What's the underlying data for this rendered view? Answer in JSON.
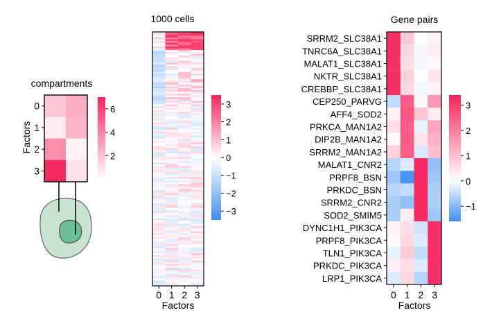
{
  "colors": {
    "neg_full": "#3d8ff0",
    "zero": "#ffffff",
    "pos_full": "#f6245b",
    "cell_outer_fill": "#c9e3d3",
    "cell_outer_stroke": "#6e6e6e",
    "cell_nucleus_fill": "#6bbf97",
    "frame": "#000000"
  },
  "chart_data": [
    {
      "type": "heatmap",
      "title": "compartments",
      "ylabel": "Factors",
      "xlabel": "",
      "row_labels": [
        "0",
        "1",
        "2",
        "3"
      ],
      "n_cols": 2,
      "values": [
        [
          1.8,
          2.6
        ],
        [
          0.6,
          2.4
        ],
        [
          3.6,
          0.4
        ],
        [
          6.8,
          1.0
        ]
      ],
      "colorbar": {
        "min": 0,
        "max": 7,
        "ticks": [
          2,
          4,
          6
        ],
        "tick_labels": [
          "2",
          "4",
          "6"
        ]
      }
    },
    {
      "type": "heatmap",
      "title": "1000 cells",
      "xlabel": "Factors",
      "col_labels": [
        "0",
        "1",
        "2",
        "3"
      ],
      "n_rows": 140,
      "pattern": "top rows strongly positive for factors 1-3; remaining rows mixed, mostly near zero with light blue in factor 0",
      "colorbar": {
        "min": -3.5,
        "max": 3.5,
        "ticks": [
          3,
          2,
          1,
          0,
          -1,
          -2,
          -3
        ],
        "tick_labels": [
          "3",
          "2",
          "1",
          "0",
          "−1",
          "−2",
          "−3"
        ]
      }
    },
    {
      "type": "heatmap",
      "title": "Gene pairs",
      "xlabel": "Factors",
      "col_labels": [
        "0",
        "1",
        "2",
        "3"
      ],
      "row_labels": [
        "SRRM2_SLC38A1",
        "TNRC6A_SLC38A1",
        "MALAT1_SLC38A1",
        "NKTR_SLC38A1",
        "CREBBP_SLC38A1",
        "CEP250_PARVG",
        "AFF4_SOD2",
        "PRKCA_MAN1A2",
        "DIP2B_MAN1A2",
        "SRRM2_MAN1A2",
        "MALAT1_CNR2",
        "PRPF8_BSN",
        "PRKDC_BSN",
        "SRRM2_CNR2",
        "SOD2_SMIM5",
        "DYNC1H1_PIK3CA",
        "PRPF8_PIK3CA",
        "TLN1_PIK3CA",
        "PRKDC_PIK3CA",
        "LRP1_PIK3CA"
      ],
      "values": [
        [
          3.2,
          0.8,
          0.0,
          0.2
        ],
        [
          3.2,
          0.6,
          -0.1,
          0.3
        ],
        [
          3.2,
          0.5,
          -0.1,
          0.1
        ],
        [
          3.2,
          0.7,
          0.0,
          0.4
        ],
        [
          3.2,
          0.6,
          -0.1,
          0.2
        ],
        [
          -0.5,
          2.5,
          0.1,
          1.6
        ],
        [
          0.2,
          2.6,
          0.9,
          0.3
        ],
        [
          0.5,
          2.5,
          -0.2,
          1.4
        ],
        [
          0.1,
          2.5,
          0.4,
          1.2
        ],
        [
          0.7,
          2.5,
          -0.3,
          1.0
        ],
        [
          -0.6,
          -0.3,
          3.3,
          -0.9
        ],
        [
          -0.8,
          -1.5,
          3.3,
          -0.8
        ],
        [
          -0.6,
          -0.5,
          3.3,
          -0.7
        ],
        [
          -0.7,
          -0.9,
          3.3,
          -0.7
        ],
        [
          -0.7,
          0.3,
          3.3,
          -0.8
        ],
        [
          0.2,
          0.5,
          -0.4,
          3.2
        ],
        [
          0.1,
          0.6,
          -0.3,
          3.2
        ],
        [
          -0.2,
          0.8,
          -0.5,
          3.2
        ],
        [
          0.3,
          0.5,
          -0.3,
          3.2
        ],
        [
          -0.3,
          0.6,
          -0.6,
          3.2
        ]
      ],
      "colorbar": {
        "min": -1.6,
        "max": 3.4,
        "ticks": [
          3,
          2,
          1,
          0,
          -1
        ],
        "tick_labels": [
          "3",
          "2",
          "1",
          "0",
          "−1"
        ]
      }
    }
  ]
}
